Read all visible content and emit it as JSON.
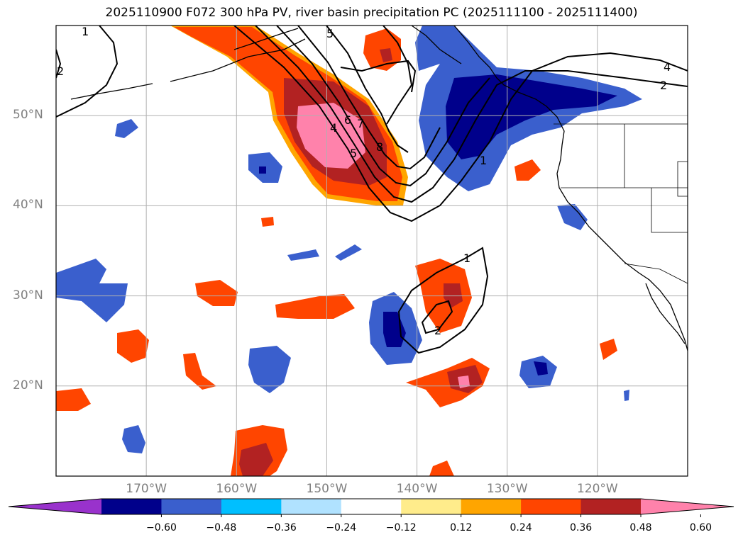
{
  "title": "2025110900 F072 300 hPa PV, river basin precipitation PC (2025111100 - 2025111400)",
  "lat_ticks": [
    {
      "label": "50°N",
      "value": 50
    },
    {
      "label": "40°N",
      "value": 40
    },
    {
      "label": "30°N",
      "value": 30
    },
    {
      "label": "20°N",
      "value": 20
    }
  ],
  "lon_ticks": [
    {
      "label": "170°W",
      "value": -170
    },
    {
      "label": "160°W",
      "value": -160
    },
    {
      "label": "150°W",
      "value": -150
    },
    {
      "label": "140°W",
      "value": -140
    },
    {
      "label": "130°W",
      "value": -130
    },
    {
      "label": "120°W",
      "value": -120
    }
  ],
  "extent": {
    "lon_min": -180,
    "lon_max": -110,
    "lat_min": 10,
    "lat_max": 60
  },
  "contour_labels": [
    "1",
    "2",
    "4",
    "5",
    "6",
    "7",
    "8"
  ],
  "colorbar": {
    "ticks": [
      "−0.60",
      "−0.48",
      "−0.36",
      "−0.24",
      "−0.12",
      "0.12",
      "0.24",
      "0.36",
      "0.48",
      "0.60"
    ],
    "colors": [
      "#9932cc",
      "#00008b",
      "#3a5fcd",
      "#00bfff",
      "#b0e2ff",
      "#ffffff",
      "#ffec8b",
      "#ffa500",
      "#ff4500",
      "#b22222",
      "#ff82ab"
    ]
  },
  "colors": {
    "negative_strong": "#00008b",
    "negative": "#3a5fcd",
    "positive": "#ff4500",
    "positive_strong": "#b22222",
    "positive_max": "#ff82ab",
    "grid": "#b0b0b0"
  }
}
